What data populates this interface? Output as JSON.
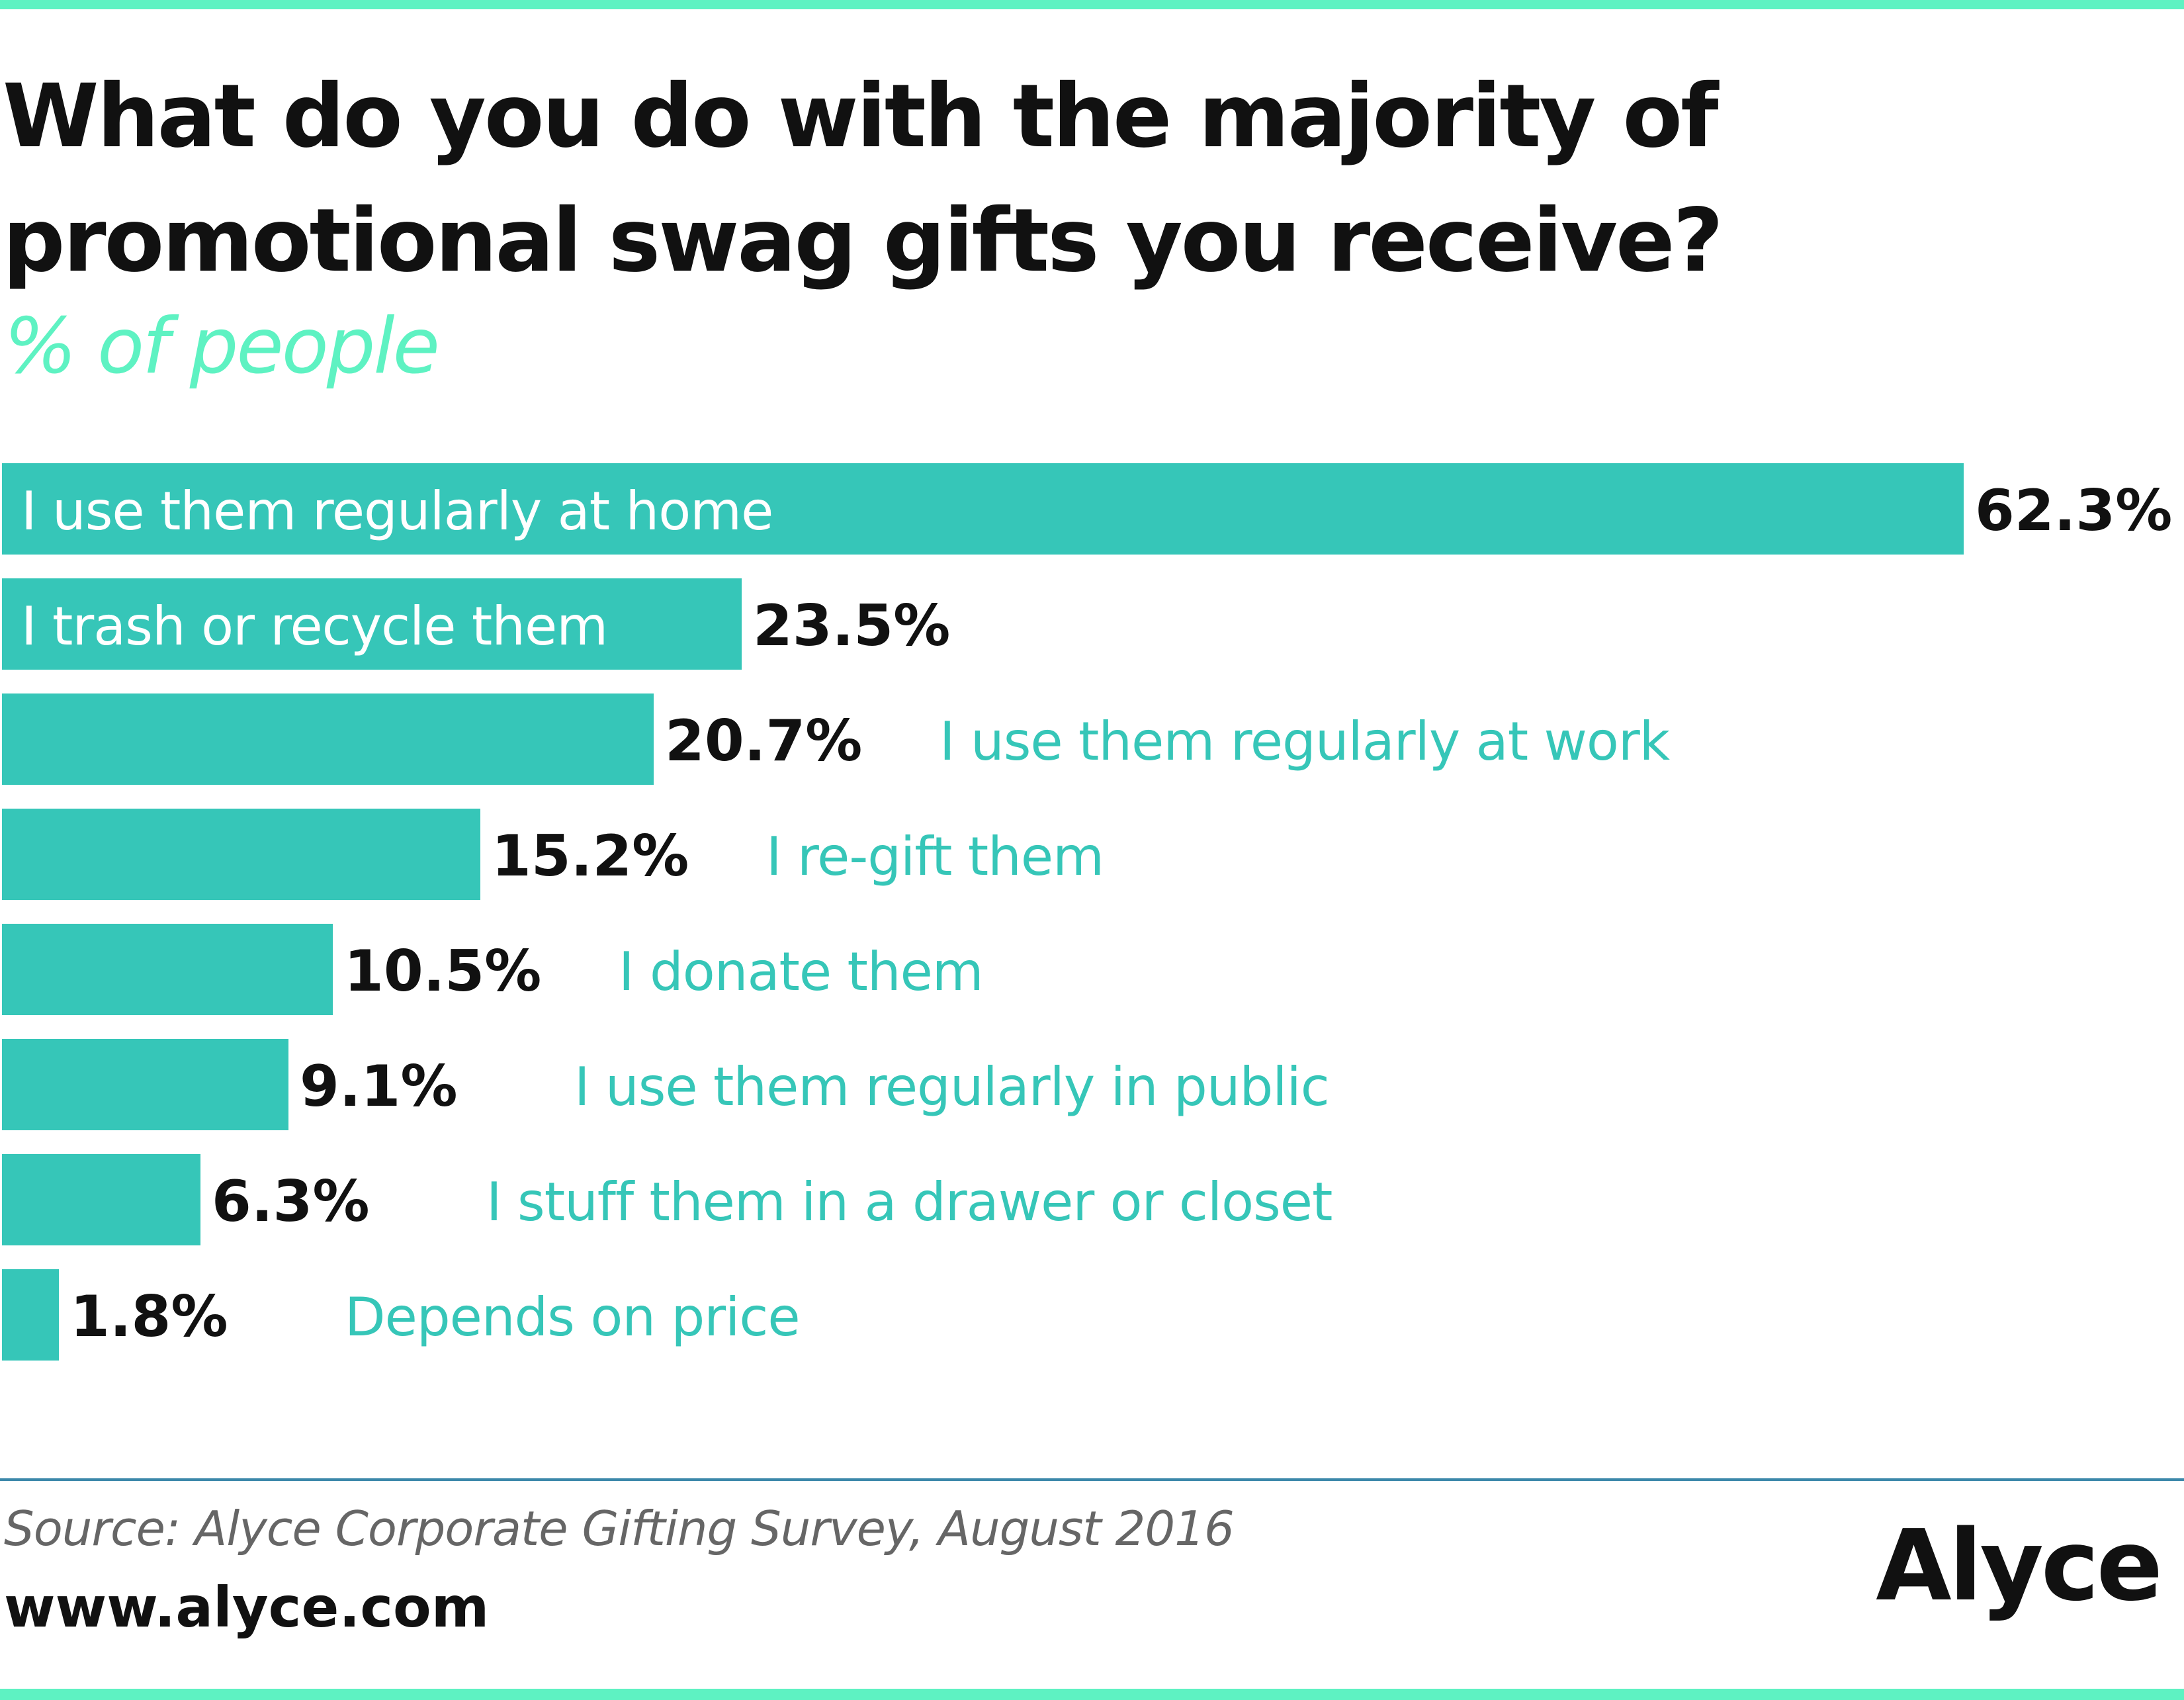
{
  "title": "What do you do with the majority of promotional swag gifts you receive?",
  "subtitle": "% of people",
  "footer": {
    "source": "Source: Alyce Corporate Gifting Survey, August 2016",
    "website": "www.alyce.com",
    "logo": "Alyce"
  },
  "colors": {
    "accent_line": "#5ef2c2",
    "bar": "#36c6b8",
    "subtitle": "#5ef2c2",
    "outside_label": "#36c6b8",
    "divider": "#3c88aa"
  },
  "chart_data": {
    "type": "bar",
    "orientation": "horizontal",
    "unit": "%",
    "categories": [
      "I use them regularly at home",
      "I trash or recycle them",
      "I use them regularly at work",
      "I re-gift them",
      "I donate them",
      "I use them regularly in public",
      "I stuff them in a drawer or closet",
      "Depends on price"
    ],
    "values": [
      62.3,
      23.5,
      20.7,
      15.2,
      10.5,
      9.1,
      6.3,
      1.8
    ],
    "value_labels": [
      "62.3%",
      "23.5%",
      "20.7%",
      "15.2%",
      "10.5%",
      "9.1%",
      "6.3%",
      "1.8%"
    ],
    "xlim": [
      0,
      62.3
    ],
    "grid": false,
    "axes_visible": false
  }
}
